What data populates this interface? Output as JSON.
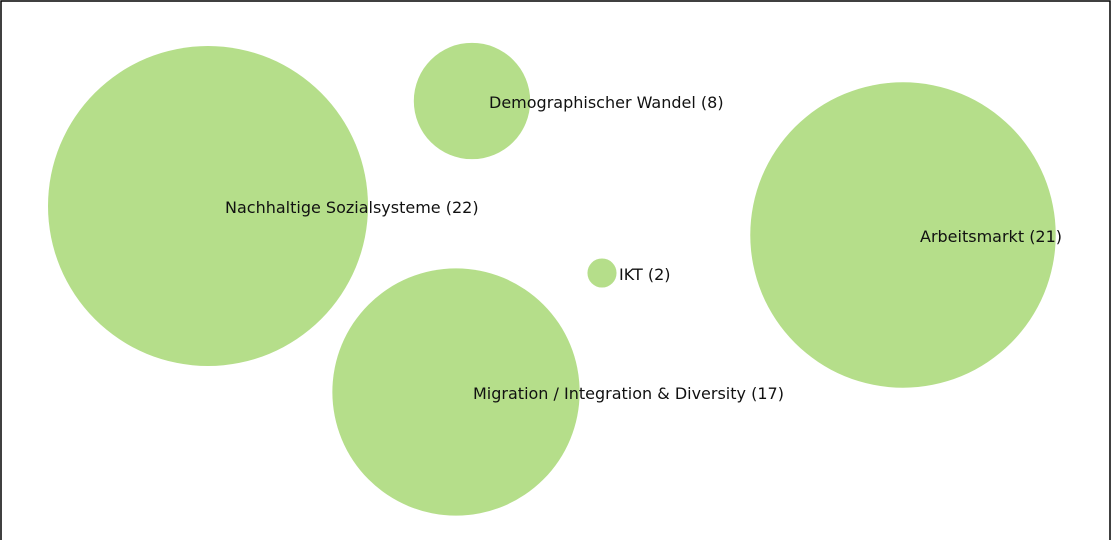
{
  "chart_data": {
    "type": "bubble",
    "categories": [
      "Nachhaltige Sozialsysteme",
      "Demographischer Wandel",
      "Arbeitsmarkt",
      "IKT",
      "Migration / Integration & Diversity"
    ],
    "values": [
      22,
      8,
      21,
      2,
      17
    ],
    "value_labels": [
      "(22)",
      "(8)",
      "(21)",
      "(2)",
      "(17)"
    ],
    "color": "#b5de8a"
  }
}
